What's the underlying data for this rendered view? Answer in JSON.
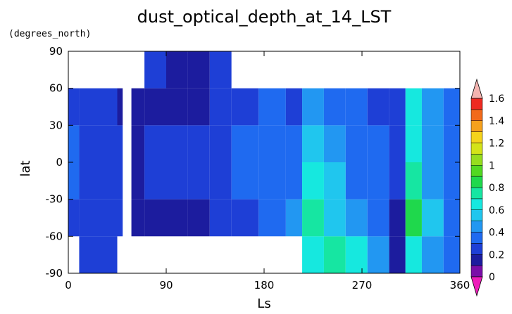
{
  "chart_data": {
    "type": "heatmap",
    "title": "dust_optical_depth_at_14_LST",
    "units_label": "(degrees_north)",
    "xlabel": "Ls",
    "ylabel": "lat",
    "xlim": [
      0,
      360
    ],
    "ylim": [
      -90,
      90
    ],
    "x_ticks": [
      "0",
      "90",
      "180",
      "270",
      "360"
    ],
    "y_ticks": [
      "90",
      "60",
      "30",
      "0",
      "-30",
      "-60",
      "-90"
    ],
    "colorbar": {
      "levels": [
        0,
        0.1,
        0.2,
        0.3,
        0.4,
        0.5,
        0.6,
        0.7,
        0.8,
        0.9,
        1.0,
        1.1,
        1.2,
        1.3,
        1.4,
        1.5,
        1.6
      ],
      "tick_labels": [
        "0",
        "0.2",
        "0.4",
        "0.6",
        "0.8",
        "1",
        "1.2",
        "1.4",
        "1.6"
      ],
      "colors": [
        "#7a0ea8",
        "#1c1c9e",
        "#1e3fd6",
        "#1f6af0",
        "#2297f2",
        "#20c6ee",
        "#16e8df",
        "#16e6a2",
        "#1fd84c",
        "#52d822",
        "#96dd1e",
        "#d4e318",
        "#f5d31b",
        "#f6a11c",
        "#f26a1b",
        "#ee2a21",
        "#ef5560"
      ],
      "under_color": "#ee1dbb",
      "over_color": "#f4b4b0"
    },
    "lat_bands": [
      -75,
      -45,
      -15,
      15,
      45,
      75
    ],
    "ls_bins": [
      {
        "ls_start": 0,
        "ls_end": 10,
        "values": [
          null,
          0.25,
          0.3,
          0.3,
          0.25,
          null
        ]
      },
      {
        "ls_start": 10,
        "ls_end": 45,
        "values": [
          0.25,
          0.2,
          0.25,
          0.25,
          0.2,
          null
        ]
      },
      {
        "ls_start": 45,
        "ls_end": 50,
        "values": [
          null,
          0.25,
          0.25,
          0.2,
          0.15,
          null
        ]
      },
      {
        "ls_start": 58,
        "ls_end": 70,
        "values": [
          null,
          0.15,
          0.15,
          0.15,
          0.15,
          null
        ]
      },
      {
        "ls_start": 70,
        "ls_end": 90,
        "values": [
          null,
          0.15,
          0.2,
          0.2,
          0.15,
          0.25
        ]
      },
      {
        "ls_start": 90,
        "ls_end": 110,
        "values": [
          null,
          0.15,
          0.2,
          0.25,
          0.15,
          0.1
        ]
      },
      {
        "ls_start": 110,
        "ls_end": 130,
        "values": [
          null,
          0.15,
          0.2,
          0.2,
          0.15,
          0.15
        ]
      },
      {
        "ls_start": 130,
        "ls_end": 150,
        "values": [
          null,
          0.2,
          0.25,
          0.25,
          0.2,
          0.2
        ]
      },
      {
        "ls_start": 150,
        "ls_end": 175,
        "values": [
          null,
          0.25,
          0.3,
          0.3,
          0.25,
          null
        ]
      },
      {
        "ls_start": 175,
        "ls_end": 200,
        "values": [
          null,
          0.35,
          0.3,
          0.3,
          0.3,
          null
        ]
      },
      {
        "ls_start": 200,
        "ls_end": 215,
        "values": [
          null,
          0.4,
          0.35,
          0.3,
          0.25,
          null
        ]
      },
      {
        "ls_start": 215,
        "ls_end": 235,
        "values": [
          0.6,
          0.75,
          0.6,
          0.5,
          0.4,
          null
        ]
      },
      {
        "ls_start": 235,
        "ls_end": 255,
        "values": [
          0.7,
          0.55,
          0.5,
          0.45,
          0.35,
          null
        ]
      },
      {
        "ls_start": 255,
        "ls_end": 275,
        "values": [
          0.6,
          0.45,
          0.35,
          0.3,
          0.3,
          null
        ]
      },
      {
        "ls_start": 275,
        "ls_end": 295,
        "values": [
          0.45,
          0.35,
          0.3,
          0.3,
          0.25,
          null
        ]
      },
      {
        "ls_start": 295,
        "ls_end": 310,
        "values": [
          0.1,
          0.15,
          0.2,
          0.25,
          0.25,
          null
        ]
      },
      {
        "ls_start": 310,
        "ls_end": 325,
        "values": [
          0.6,
          0.8,
          0.7,
          0.65,
          0.6,
          null
        ]
      },
      {
        "ls_start": 325,
        "ls_end": 345,
        "values": [
          0.4,
          0.5,
          0.45,
          0.45,
          0.4,
          null
        ]
      },
      {
        "ls_start": 345,
        "ls_end": 360,
        "values": [
          0.3,
          0.35,
          0.35,
          0.35,
          0.3,
          null
        ]
      }
    ]
  }
}
